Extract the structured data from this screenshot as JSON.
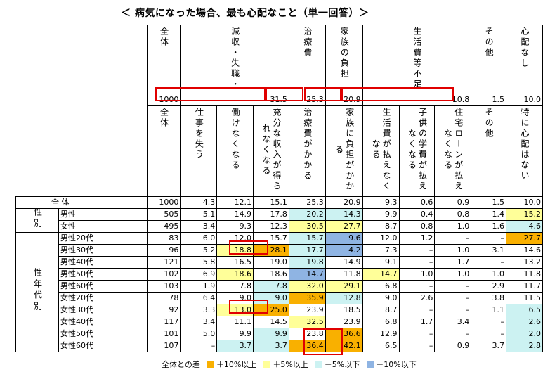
{
  "title": "＜ 病気になった場合、最も心配なこと（単一回答）＞",
  "top_headers": [
    "全体",
    "減収・失職・",
    "治療費",
    "家族の負担",
    "生活費等不足",
    "その他",
    "心配なし"
  ],
  "top_totals": [
    "1000",
    "31.5",
    "25.3",
    "20.9",
    "10.8",
    "1.5",
    "10.0"
  ],
  "sub_headers": [
    "全体",
    "仕事を失う",
    "働けなくなる",
    "充分な収入が得られなくなる",
    "治療費がかかる",
    "家族に負担がかかる",
    "生活費が払えなくなる",
    "子供の学費が払えなくなる",
    "住宅ローンが払えなくなる",
    "その他",
    "特に心配はない"
  ],
  "rows": [
    {
      "group": "",
      "label": "全 体",
      "values": [
        "1000",
        "4.3",
        "12.1",
        "15.1",
        "25.3",
        "20.9",
        "9.3",
        "0.6",
        "0.9",
        "1.5",
        "10.0"
      ]
    },
    {
      "group": "性別",
      "label": "男性",
      "values": [
        "505",
        "5.1",
        "14.9",
        "17.8",
        "20.2",
        "14.3",
        "9.9",
        "0.4",
        "0.8",
        "1.4",
        "15.2"
      ]
    },
    {
      "group": "",
      "label": "女性",
      "values": [
        "495",
        "3.4",
        "9.3",
        "12.3",
        "30.5",
        "27.7",
        "8.7",
        "0.8",
        "1.0",
        "1.6",
        "4.6"
      ]
    },
    {
      "group": "性年代別",
      "label": "男性20代",
      "values": [
        "83",
        "6.0",
        "12.0",
        "15.7",
        "15.7",
        "9.6",
        "12.0",
        "1.2",
        "–",
        "–",
        "27.7"
      ]
    },
    {
      "group": "",
      "label": "男性30代",
      "values": [
        "96",
        "5.2",
        "18.8",
        "28.1",
        "17.7",
        "4.2",
        "7.3",
        "–",
        "1.0",
        "3.1",
        "14.6"
      ]
    },
    {
      "group": "",
      "label": "男性40代",
      "values": [
        "121",
        "5.8",
        "16.5",
        "19.0",
        "19.8",
        "14.9",
        "9.1",
        "–",
        "1.7",
        "–",
        "13.2"
      ]
    },
    {
      "group": "",
      "label": "男性50代",
      "values": [
        "102",
        "6.9",
        "18.6",
        "18.6",
        "14.7",
        "11.8",
        "14.7",
        "1.0",
        "1.0",
        "1.0",
        "11.8"
      ]
    },
    {
      "group": "",
      "label": "男性60代",
      "values": [
        "103",
        "1.9",
        "7.8",
        "7.8",
        "32.0",
        "29.1",
        "6.8",
        "–",
        "–",
        "2.9",
        "11.7"
      ]
    },
    {
      "group": "",
      "label": "女性20代",
      "values": [
        "78",
        "6.4",
        "9.0",
        "9.0",
        "35.9",
        "12.8",
        "9.0",
        "2.6",
        "–",
        "3.8",
        "11.5"
      ]
    },
    {
      "group": "",
      "label": "女性30代",
      "values": [
        "92",
        "3.3",
        "13.0",
        "25.0",
        "23.9",
        "18.5",
        "8.7",
        "–",
        "–",
        "1.1",
        "6.5"
      ]
    },
    {
      "group": "",
      "label": "女性40代",
      "values": [
        "117",
        "3.4",
        "11.1",
        "14.5",
        "32.5",
        "23.9",
        "6.8",
        "1.7",
        "3.4",
        "–",
        "2.6"
      ]
    },
    {
      "group": "",
      "label": "女性50代",
      "values": [
        "101",
        "5.0",
        "9.9",
        "9.9",
        "23.8",
        "36.6",
        "12.9",
        "–",
        "–",
        "–",
        "2.0"
      ]
    },
    {
      "group": "",
      "label": "女性60代",
      "values": [
        "107",
        "–",
        "3.7",
        "3.7",
        "36.4",
        "42.1",
        "6.5",
        "–",
        "0.9",
        "3.7",
        "2.8"
      ]
    }
  ],
  "highlights": [
    [
      null,
      null,
      null,
      null,
      null,
      null,
      null,
      null,
      null,
      null,
      null
    ],
    [
      null,
      null,
      null,
      null,
      "cy",
      "cy",
      null,
      null,
      null,
      null,
      "yl"
    ],
    [
      null,
      null,
      null,
      null,
      "yl",
      "yl",
      null,
      null,
      null,
      null,
      "cy"
    ],
    [
      null,
      null,
      null,
      null,
      "cy",
      "bl",
      null,
      null,
      null,
      null,
      "or"
    ],
    [
      null,
      null,
      "yl",
      "or",
      "cy",
      "bl",
      null,
      null,
      null,
      null,
      null
    ],
    [
      null,
      null,
      null,
      null,
      "cy",
      null,
      null,
      null,
      null,
      null,
      null
    ],
    [
      null,
      null,
      "yl",
      null,
      "bl",
      null,
      "yl",
      null,
      null,
      null,
      null
    ],
    [
      null,
      null,
      null,
      "cy",
      "yl",
      "yl",
      null,
      null,
      null,
      null,
      null
    ],
    [
      null,
      null,
      null,
      "cy",
      "or",
      "cy",
      null,
      null,
      null,
      null,
      null
    ],
    [
      null,
      null,
      "yl",
      "or",
      null,
      null,
      null,
      null,
      null,
      null,
      "cy"
    ],
    [
      null,
      null,
      null,
      null,
      "yl",
      null,
      null,
      null,
      null,
      null,
      "cy"
    ],
    [
      null,
      null,
      null,
      "cy",
      null,
      "or",
      null,
      null,
      null,
      null,
      "cy"
    ],
    [
      null,
      null,
      "cy",
      "cy",
      "or",
      "or",
      null,
      null,
      null,
      null,
      "cy"
    ]
  ],
  "legend": {
    "prefix": "全体との差",
    "items": [
      {
        "label": "＋10%以上",
        "color": "#f9b000"
      },
      {
        "label": "＋5%以上",
        "color": "#ffff99"
      },
      {
        "label": "－5%以下",
        "color": "#ccf2f2"
      },
      {
        "label": "－10%以下",
        "color": "#8fb4e3"
      }
    ]
  },
  "colors": {
    "highlight_box": "#e00000"
  }
}
